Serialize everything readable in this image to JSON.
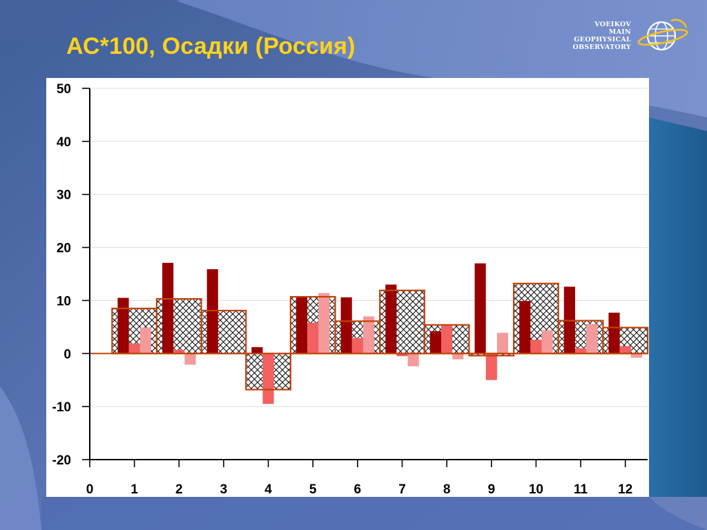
{
  "slide": {
    "title": "АС*100, Осадки (Россия)"
  },
  "logo": {
    "lines": [
      "VOEIKOV",
      "MAIN",
      "GEOPHYSICAL",
      "OBSERVATORY"
    ],
    "icon": "globe-icon"
  },
  "colors": {
    "title": "#ffd31a",
    "background_dark": "#4a6aa8",
    "background_light": "#6f86c4",
    "series_dark_red": "#990000",
    "series_red": "#f26060",
    "series_pink": "#f59a9a",
    "box_outline": "#c0430c"
  },
  "chart_data": {
    "type": "bar",
    "title": "",
    "xlabel": "",
    "ylabel": "",
    "x_ticks": [
      "0",
      "1",
      "2",
      "3",
      "4",
      "5",
      "6",
      "7",
      "8",
      "9",
      "10",
      "11",
      "12"
    ],
    "y_ticks": [
      "-20",
      "-10",
      "0",
      "10",
      "20",
      "30",
      "40",
      "50"
    ],
    "xlim": [
      0,
      12.5
    ],
    "ylim": [
      -20,
      50
    ],
    "grid": "horizontal",
    "categories": [
      "1",
      "2",
      "3",
      "4",
      "5",
      "6",
      "7",
      "8",
      "9",
      "10",
      "11",
      "12"
    ],
    "boxes": {
      "pattern": "cross-hatch",
      "values": [
        8.5,
        10.3,
        8.1,
        -6.8,
        10.7,
        6.1,
        11.9,
        5.4,
        -0.4,
        13.2,
        6.2,
        4.9
      ]
    },
    "series": [
      {
        "color": "#990000",
        "values": [
          10.5,
          17.1,
          15.9,
          1.2,
          10.8,
          10.6,
          13.0,
          4.2,
          17.0,
          9.9,
          12.6,
          7.7
        ]
      },
      {
        "color": "#f26060",
        "values": [
          1.9,
          0.7,
          0.0,
          -9.5,
          5.8,
          2.9,
          -0.5,
          5.5,
          -5.0,
          2.6,
          1.0,
          1.4
        ]
      },
      {
        "color": "#f59a9a",
        "values": [
          4.9,
          -2.1,
          0.0,
          0.0,
          11.4,
          7.0,
          -2.4,
          -1.1,
          3.9,
          4.4,
          5.6,
          -0.8
        ]
      }
    ]
  }
}
